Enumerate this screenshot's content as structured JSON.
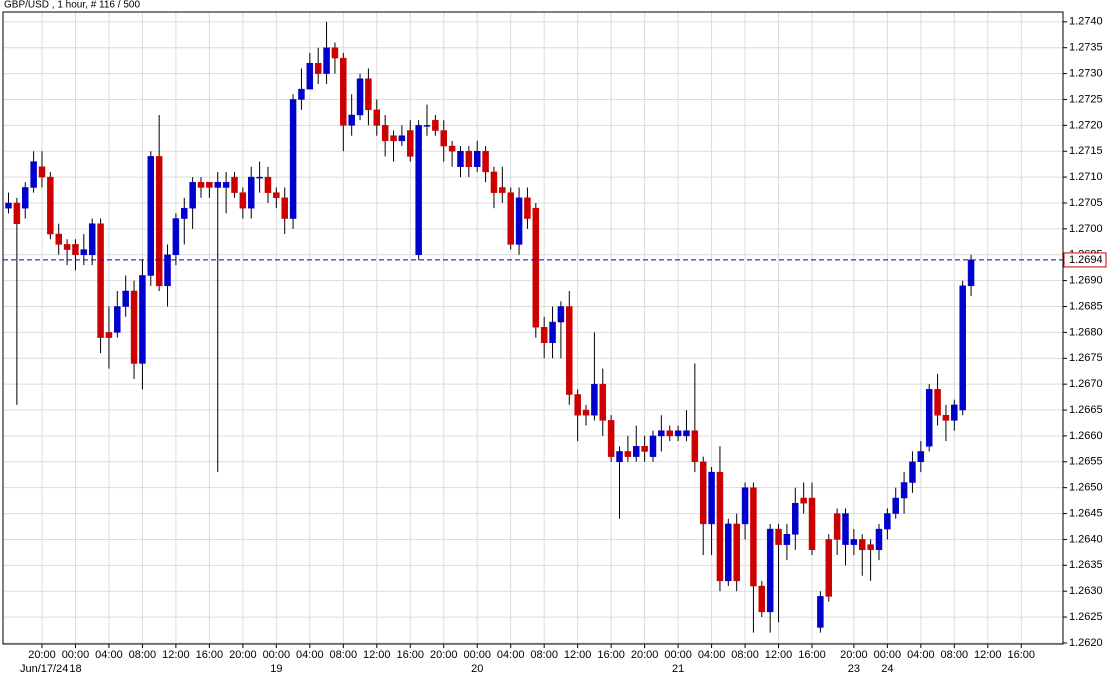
{
  "chart_data": {
    "type": "candlestick",
    "title": "GBP/USD , 1 hour, # 116 / 500",
    "categories": [
      null,
      null,
      null,
      null,
      "20:00",
      null,
      null,
      null,
      "00:00",
      null,
      null,
      null,
      "04:00",
      null,
      null,
      null,
      "08:00",
      null,
      null,
      null,
      "12:00",
      null,
      null,
      null,
      "16:00",
      null,
      null,
      null,
      "20:00",
      null,
      null,
      null,
      "00:00",
      null,
      null,
      null,
      "04:00",
      null,
      null,
      null,
      "08:00",
      null,
      null,
      null,
      "12:00",
      null,
      null,
      null,
      "16:00",
      null,
      null,
      null,
      "20:00",
      null,
      null,
      null,
      "00:00",
      null,
      null,
      null,
      "04:00",
      null,
      null,
      null,
      "08:00",
      null,
      null,
      null,
      "12:00",
      null,
      null,
      null,
      "16:00",
      null,
      null,
      null,
      "20:00",
      null,
      null,
      null,
      "00:00",
      null,
      null,
      null,
      "04:00",
      null,
      null,
      null,
      "08:00",
      null,
      null,
      null,
      "12:00",
      null,
      null,
      null,
      "16:00",
      null,
      null,
      null,
      null,
      "20:00",
      null,
      null,
      null,
      "00:00",
      null,
      null,
      null,
      "04:00",
      null,
      null,
      null,
      "08:00",
      null,
      null,
      null,
      "12:00",
      null,
      null,
      null,
      "16:00"
    ],
    "dates": [
      "Jun/17/24",
      null,
      null,
      null,
      null,
      null,
      null,
      null,
      "18",
      null,
      null,
      null,
      null,
      null,
      null,
      null,
      null,
      null,
      null,
      null,
      null,
      null,
      null,
      null,
      null,
      null,
      null,
      null,
      null,
      null,
      null,
      null,
      "19",
      null,
      null,
      null,
      null,
      null,
      null,
      null,
      null,
      null,
      null,
      null,
      null,
      null,
      null,
      null,
      null,
      null,
      null,
      null,
      null,
      null,
      null,
      null,
      "20",
      null,
      null,
      null,
      null,
      null,
      null,
      null,
      null,
      null,
      null,
      null,
      null,
      null,
      null,
      null,
      null,
      null,
      null,
      null,
      null,
      null,
      null,
      null,
      "21",
      null,
      null,
      null,
      null,
      null,
      null,
      null,
      null,
      null,
      null,
      null,
      null,
      null,
      null,
      null,
      null,
      null,
      null,
      null,
      null,
      "23",
      null,
      null,
      null,
      "24",
      null,
      null,
      null,
      null,
      null,
      null,
      null,
      null,
      null,
      null,
      null,
      null,
      null,
      null,
      null,
      null
    ],
    "open": [
      1.2704,
      1.2705,
      1.2704,
      1.2708,
      1.2712,
      1.271,
      1.2699,
      1.2697,
      1.2697,
      1.2695,
      1.2695,
      1.2701,
      1.268,
      1.268,
      1.2685,
      1.2688,
      1.2674,
      1.2691,
      1.2714,
      1.2689,
      1.2695,
      1.2702,
      1.2704,
      1.2709,
      1.2709,
      1.2708,
      1.2708,
      1.271,
      1.2707,
      1.2704,
      1.271,
      1.271,
      1.2707,
      1.2706,
      1.2702,
      1.2725,
      1.2727,
      1.2732,
      1.273,
      1.2735,
      1.2733,
      1.272,
      1.2722,
      1.2729,
      1.2723,
      1.272,
      1.2718,
      1.2717,
      1.2719,
      1.2695,
      1.272,
      1.2721,
      1.2719,
      1.2716,
      1.2712,
      1.2715,
      1.2712,
      1.2715,
      1.2711,
      1.2708,
      1.2707,
      1.2697,
      1.2706,
      1.2704,
      1.2681,
      1.2678,
      1.2682,
      1.2685,
      1.2668,
      1.2665,
      1.2664,
      1.267,
      1.2663,
      1.2655,
      1.2657,
      1.2656,
      1.2658,
      1.2656,
      1.266,
      1.2661,
      1.266,
      1.266,
      1.2661,
      1.2655,
      1.2643,
      1.2653,
      1.2632,
      1.2643,
      1.2643,
      1.265,
      1.2631,
      1.2626,
      1.2642,
      1.2639,
      1.2641,
      1.2648,
      1.2648,
      1.2623,
      1.264,
      1.2645,
      1.2639,
      1.2639,
      1.264,
      1.2639,
      1.2638,
      1.2642,
      1.2645,
      1.2648,
      1.2651,
      1.2655,
      1.2658,
      1.2669,
      1.2664,
      1.2663,
      1.2665,
      1.2689,
      null,
      null,
      null,
      null,
      null,
      null
    ],
    "high": [
      1.2707,
      1.2706,
      1.2709,
      1.2715,
      1.2715,
      1.2711,
      1.2701,
      1.2698,
      1.2698,
      1.2699,
      1.2702,
      1.2702,
      1.2685,
      1.2688,
      1.2691,
      1.269,
      1.2694,
      1.2715,
      1.2722,
      1.2697,
      1.2703,
      1.2706,
      1.271,
      1.271,
      1.2709,
      1.2711,
      1.2711,
      1.2711,
      1.2708,
      1.2712,
      1.2713,
      1.2712,
      1.2708,
      1.2708,
      1.2726,
      1.2731,
      1.2734,
      1.2735,
      1.274,
      1.2736,
      1.2734,
      1.2726,
      1.273,
      1.2731,
      1.2725,
      1.2722,
      1.2719,
      1.272,
      1.2721,
      1.2721,
      1.2724,
      1.2722,
      1.2721,
      1.2717,
      1.2716,
      1.2716,
      1.2717,
      1.2716,
      1.2712,
      1.2712,
      1.2708,
      1.2708,
      1.2708,
      1.2705,
      1.2683,
      1.2685,
      1.2686,
      1.2688,
      1.2669,
      1.2666,
      1.268,
      1.2673,
      1.2664,
      1.2658,
      1.266,
      1.2662,
      1.266,
      1.2661,
      1.2664,
      1.2662,
      1.2662,
      1.2665,
      1.2674,
      1.2656,
      1.2654,
      1.2658,
      1.2644,
      1.2645,
      1.2651,
      1.2651,
      1.2632,
      1.2643,
      1.2643,
      1.2643,
      1.265,
      1.2651,
      1.2651,
      1.263,
      1.2641,
      1.2646,
      1.2646,
      1.2642,
      1.2641,
      1.264,
      1.2643,
      1.2646,
      1.265,
      1.2653,
      1.2657,
      1.2659,
      1.267,
      1.2672,
      1.2666,
      1.2667,
      1.269,
      1.2695,
      null,
      null,
      null,
      null,
      null,
      null
    ],
    "low": [
      1.2703,
      1.2666,
      1.2702,
      1.2707,
      1.2708,
      1.2698,
      1.2695,
      1.2693,
      1.2692,
      1.2693,
      1.2693,
      1.2676,
      1.2673,
      1.2679,
      1.2683,
      1.2671,
      1.2669,
      1.2689,
      1.2688,
      1.2685,
      1.2693,
      1.2697,
      1.27,
      1.2706,
      1.2706,
      1.2653,
      1.2703,
      1.2706,
      1.2702,
      1.2702,
      1.2707,
      1.2705,
      1.2704,
      1.2699,
      1.27,
      1.2723,
      1.2727,
      1.2728,
      1.2728,
      1.273,
      1.2715,
      1.2718,
      1.2721,
      1.272,
      1.2718,
      1.2714,
      1.2713,
      1.2716,
      1.2713,
      1.2694,
      1.2718,
      1.2718,
      1.2713,
      1.2712,
      1.271,
      1.271,
      1.2711,
      1.2709,
      1.2704,
      1.2705,
      1.2696,
      1.2695,
      1.27,
      1.2679,
      1.2675,
      1.2675,
      1.2675,
      1.2666,
      1.2659,
      1.2662,
      1.2663,
      1.266,
      1.2655,
      1.2644,
      1.2655,
      1.2655,
      1.2655,
      1.2655,
      1.2657,
      1.2659,
      1.2659,
      1.2659,
      1.2653,
      1.2637,
      1.2637,
      1.263,
      1.2631,
      1.263,
      1.264,
      1.2622,
      1.2625,
      1.2622,
      1.2624,
      1.2636,
      1.2638,
      1.2645,
      1.2637,
      1.2622,
      1.2628,
      1.2637,
      1.2635,
      1.2637,
      1.2633,
      1.2632,
      1.2636,
      1.264,
      1.2644,
      1.2645,
      1.2649,
      1.2653,
      1.2657,
      1.2662,
      1.2659,
      1.2661,
      1.2664,
      1.2687,
      null,
      null,
      null,
      null,
      null,
      null
    ],
    "close": [
      1.2705,
      1.2701,
      1.2708,
      1.2713,
      1.271,
      1.2699,
      1.2697,
      1.2696,
      1.2695,
      1.2696,
      1.2701,
      1.2679,
      1.2679,
      1.2685,
      1.2688,
      1.2674,
      1.2691,
      1.2714,
      1.2689,
      1.2695,
      1.2702,
      1.2704,
      1.2709,
      1.2708,
      1.2708,
      1.2709,
      1.2709,
      1.2707,
      1.2704,
      1.271,
      1.271,
      1.2707,
      1.2706,
      1.2702,
      1.2725,
      1.2727,
      1.2732,
      1.273,
      1.2735,
      1.2733,
      1.272,
      1.2722,
      1.2729,
      1.2723,
      1.272,
      1.2717,
      1.2717,
      1.2718,
      1.2714,
      1.272,
      1.272,
      1.2719,
      1.2716,
      1.2715,
      1.2715,
      1.2712,
      1.2715,
      1.2711,
      1.2707,
      1.2707,
      1.2697,
      1.2706,
      1.2702,
      1.2681,
      1.2678,
      1.2682,
      1.2685,
      1.2668,
      1.2664,
      1.2664,
      1.267,
      1.2663,
      1.2656,
      1.2657,
      1.2656,
      1.2658,
      1.2657,
      1.266,
      1.2661,
      1.266,
      1.2661,
      1.2661,
      1.2655,
      1.2643,
      1.2653,
      1.2632,
      1.2643,
      1.2632,
      1.265,
      1.2631,
      1.2626,
      1.2642,
      1.2639,
      1.2641,
      1.2647,
      1.2647,
      1.2638,
      1.2629,
      1.2629,
      1.264,
      1.2645,
      1.264,
      1.2638,
      1.2638,
      1.2642,
      1.2645,
      1.2648,
      1.2651,
      1.2655,
      1.2657,
      1.2669,
      1.2664,
      1.2663,
      1.2666,
      1.2689,
      1.2694,
      null,
      null,
      null,
      null,
      null,
      null
    ],
    "up_color": "#0000cc",
    "down_color": "#cc0000",
    "ylim": [
      1.26198,
      1.27419
    ],
    "yticks": [
      {
        "value": 1.262,
        "label": "1.2620"
      },
      1.2625,
      {
        "value": 1.263,
        "label": "1.2630"
      },
      1.2635,
      {
        "value": 1.264,
        "label": "1.2640"
      },
      1.2645,
      {
        "value": 1.265,
        "label": "1.2650"
      },
      1.2655,
      {
        "value": 1.266,
        "label": "1.2660"
      },
      1.2665,
      {
        "value": 1.267,
        "label": "1.2670"
      },
      1.2675,
      {
        "value": 1.268,
        "label": "1.2680"
      },
      1.2685,
      {
        "value": 1.269,
        "label": "1.2690"
      },
      1.2695,
      {
        "value": 1.27,
        "label": "1.2700"
      },
      1.2705,
      {
        "value": 1.271,
        "label": "1.2710"
      },
      1.2715,
      {
        "value": 1.272,
        "label": "1.2720"
      },
      1.2725,
      {
        "value": 1.273,
        "label": "1.2730"
      },
      1.2735,
      {
        "value": 1.274,
        "label": "1.2740"
      }
    ],
    "grid": true,
    "last_price": 1.2694,
    "last_price_color": "#0000cc"
  }
}
